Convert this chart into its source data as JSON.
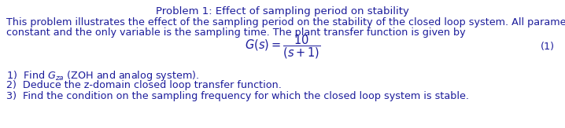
{
  "title": "Problem 1: Effect of sampling period on stability",
  "body_line1": "This problem illustrates the effect of the sampling period on the stability of the closed loop system. All parameters are",
  "body_line2": "constant and the only variable is the sampling time. The plant transfer function is given by",
  "equation_label": "(1)",
  "item1": "1)  Find $G_{za}$ (ZOH and analog system).",
  "item2": "2)  Deduce the z-domain closed loop transfer function.",
  "item3": "3)  Find the condition on the sampling frequency for which the closed loop system is stable.",
  "text_color": "#1c1c9b",
  "bg_color": "#ffffff",
  "title_fontsize": 9.5,
  "body_fontsize": 9.2,
  "item_fontsize": 9.2,
  "eq_fontsize": 10.5,
  "eq_label_fontsize": 9.2
}
